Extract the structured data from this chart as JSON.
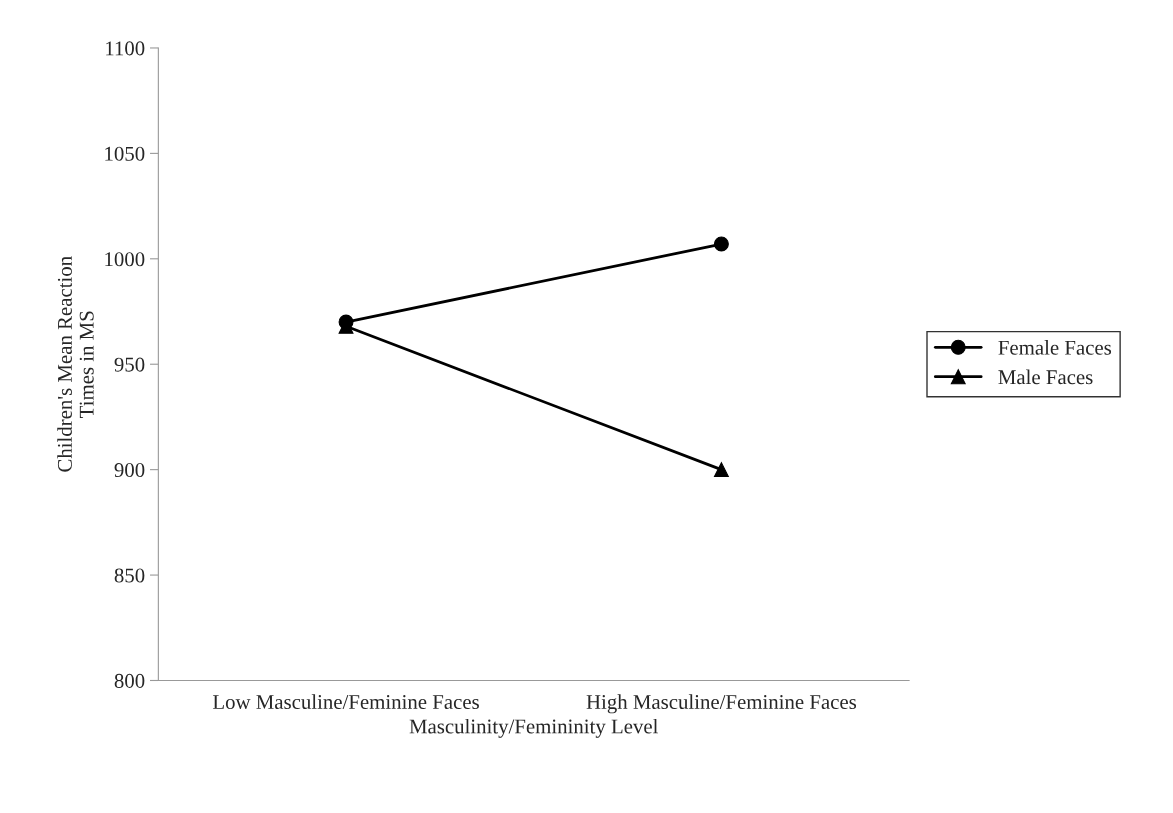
{
  "chart_data": {
    "type": "line",
    "xlabel": "Masculinity/Femininity Level",
    "ylabel": "Children's Mean Reaction\nTimes in MS",
    "categories": [
      "Low Masculine/Feminine Faces",
      "High Masculine/Feminine Faces"
    ],
    "series": [
      {
        "name": "Female Faces",
        "color": "#000000",
        "marker": "circle",
        "values": [
          970,
          1007
        ]
      },
      {
        "name": "Male Faces",
        "color": "#000000",
        "marker": "triangle",
        "values": [
          968,
          900
        ]
      }
    ],
    "ylim": [
      800,
      1100
    ],
    "yticks": [
      800,
      850,
      900,
      950,
      1000,
      1050,
      1100
    ],
    "grid": false,
    "legend": "right",
    "line_style": "solid"
  }
}
